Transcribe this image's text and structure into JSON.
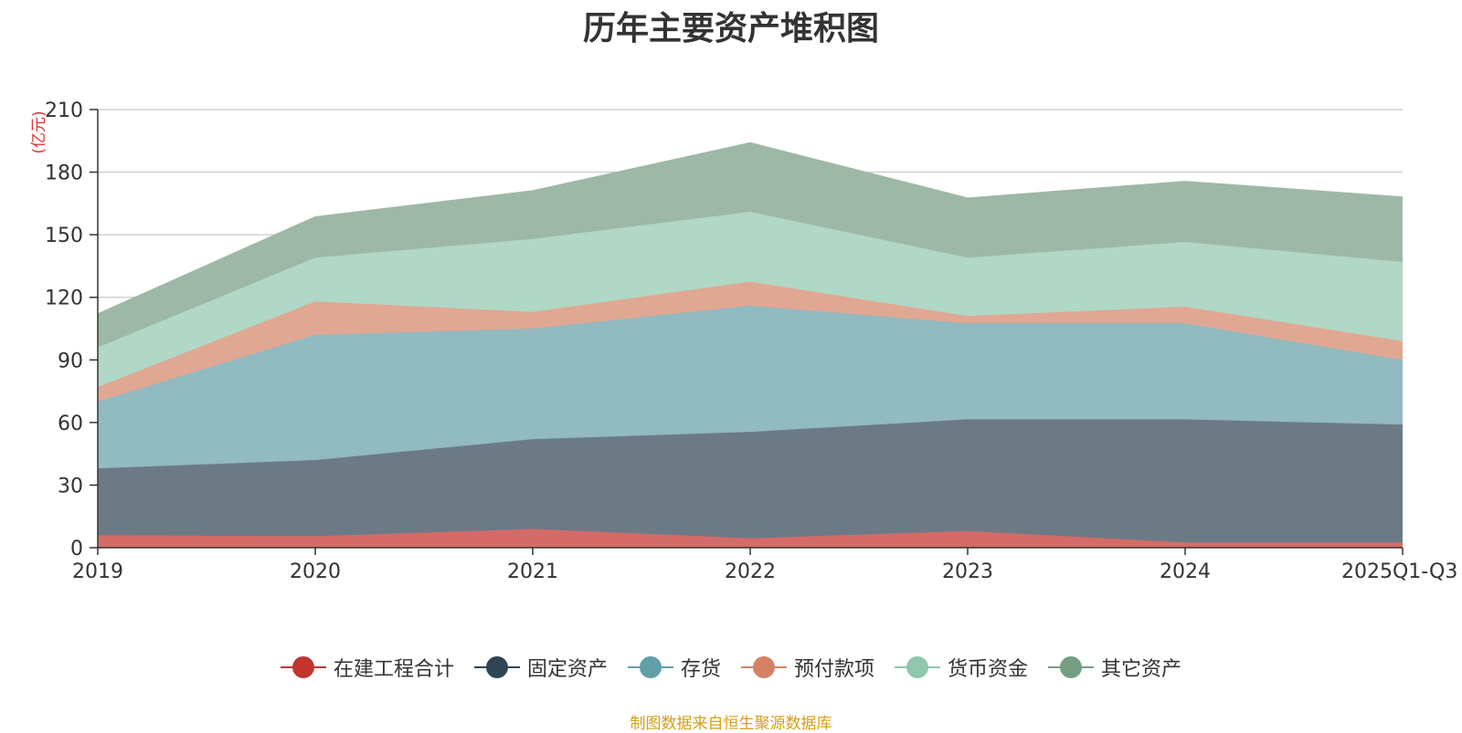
{
  "chart_data": {
    "type": "area",
    "stacked": true,
    "title": "历年主要资产堆积图",
    "ylabel": "(亿元)",
    "xlabel": "",
    "categories": [
      "2019",
      "2020",
      "2021",
      "2022",
      "2023",
      "2024",
      "2025Q1-Q3"
    ],
    "ylim": [
      0,
      210
    ],
    "yticks": [
      0,
      30,
      60,
      90,
      120,
      150,
      180,
      210
    ],
    "grid": true,
    "legend_position": "bottom",
    "series": [
      {
        "name": "在建工程合计",
        "color": "#c23531",
        "fill": "#d46b68",
        "values": [
          6,
          5.5,
          9,
          4.5,
          8,
          2.5,
          2.5
        ]
      },
      {
        "name": "固定资产",
        "color": "#2f4554",
        "fill": "#6c7a86",
        "values": [
          32,
          36.5,
          43,
          51,
          53.5,
          59,
          56.5
        ]
      },
      {
        "name": "存货",
        "color": "#61a0a8",
        "fill": "#91bac1",
        "values": [
          32,
          60,
          53,
          60.5,
          46,
          46,
          31
        ]
      },
      {
        "name": "预付款项",
        "color": "#d48265",
        "fill": "#e0a792",
        "values": [
          7,
          16,
          8,
          11.5,
          3.5,
          8,
          9
        ]
      },
      {
        "name": "货币资金",
        "color": "#91c7ae",
        "fill": "#b1d7c6",
        "values": [
          19,
          21,
          35,
          33.5,
          28,
          31,
          38
        ]
      },
      {
        "name": "其它资产",
        "color": "#749f83",
        "fill": "#9db8a6",
        "values": [
          16,
          19.5,
          23,
          33,
          28.5,
          29,
          31
        ]
      }
    ]
  },
  "footer": {
    "source": "制图数据来自恒生聚源数据库"
  }
}
